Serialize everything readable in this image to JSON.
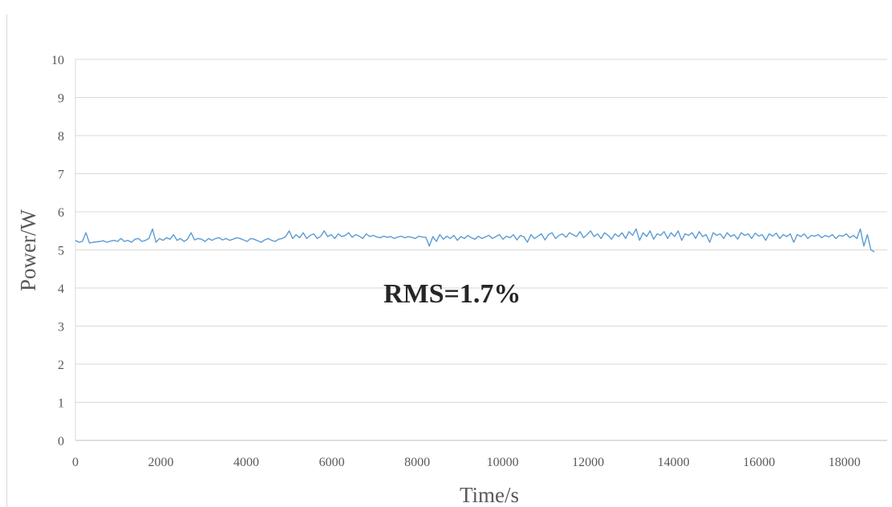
{
  "chart_data": {
    "type": "line",
    "title": "",
    "xlabel": "Time/s",
    "ylabel": "Power/W",
    "xlim": [
      0,
      19000
    ],
    "ylim": [
      0,
      10
    ],
    "x_ticks": [
      "0",
      "2000",
      "4000",
      "6000",
      "8000",
      "10000",
      "12000",
      "14000",
      "16000",
      "18000"
    ],
    "y_ticks": [
      "0",
      "1",
      "2",
      "3",
      "4",
      "5",
      "6",
      "7",
      "8",
      "9",
      "10"
    ],
    "grid": true,
    "legend": "none",
    "annotation": "RMS=1.7%",
    "series": [
      {
        "color": "#5b9bd5",
        "x_start": 0,
        "x_end": 18700,
        "values": [
          5.25,
          5.2,
          5.22,
          5.45,
          5.18,
          5.2,
          5.21,
          5.22,
          5.24,
          5.2,
          5.23,
          5.25,
          5.22,
          5.3,
          5.22,
          5.25,
          5.2,
          5.28,
          5.3,
          5.22,
          5.25,
          5.3,
          5.55,
          5.2,
          5.3,
          5.25,
          5.32,
          5.28,
          5.4,
          5.25,
          5.3,
          5.22,
          5.28,
          5.45,
          5.26,
          5.3,
          5.28,
          5.22,
          5.3,
          5.25,
          5.3,
          5.32,
          5.26,
          5.3,
          5.25,
          5.28,
          5.32,
          5.3,
          5.26,
          5.22,
          5.3,
          5.28,
          5.24,
          5.2,
          5.26,
          5.3,
          5.25,
          5.22,
          5.28,
          5.3,
          5.35,
          5.5,
          5.3,
          5.4,
          5.32,
          5.45,
          5.3,
          5.38,
          5.42,
          5.3,
          5.36,
          5.5,
          5.35,
          5.4,
          5.3,
          5.42,
          5.35,
          5.38,
          5.45,
          5.33,
          5.4,
          5.36,
          5.3,
          5.42,
          5.35,
          5.38,
          5.34,
          5.32,
          5.36,
          5.33,
          5.35,
          5.3,
          5.34,
          5.36,
          5.32,
          5.35,
          5.33,
          5.3,
          5.36,
          5.34,
          5.33,
          5.1,
          5.35,
          5.22,
          5.4,
          5.28,
          5.36,
          5.3,
          5.38,
          5.25,
          5.35,
          5.3,
          5.38,
          5.32,
          5.28,
          5.36,
          5.3,
          5.34,
          5.38,
          5.3,
          5.35,
          5.4,
          5.28,
          5.36,
          5.32,
          5.4,
          5.26,
          5.38,
          5.34,
          5.2,
          5.4,
          5.3,
          5.36,
          5.42,
          5.26,
          5.4,
          5.45,
          5.3,
          5.38,
          5.42,
          5.33,
          5.45,
          5.4,
          5.35,
          5.48,
          5.32,
          5.4,
          5.5,
          5.35,
          5.42,
          5.3,
          5.45,
          5.38,
          5.28,
          5.42,
          5.35,
          5.45,
          5.3,
          5.48,
          5.38,
          5.55,
          5.25,
          5.45,
          5.35,
          5.5,
          5.28,
          5.42,
          5.38,
          5.48,
          5.3,
          5.45,
          5.35,
          5.5,
          5.25,
          5.42,
          5.38,
          5.45,
          5.3,
          5.48,
          5.35,
          5.4,
          5.2,
          5.45,
          5.38,
          5.42,
          5.3,
          5.45,
          5.35,
          5.4,
          5.28,
          5.45,
          5.38,
          5.42,
          5.3,
          5.44,
          5.36,
          5.4,
          5.25,
          5.42,
          5.36,
          5.44,
          5.3,
          5.4,
          5.35,
          5.42,
          5.2,
          5.4,
          5.35,
          5.42,
          5.3,
          5.38,
          5.36,
          5.4,
          5.32,
          5.38,
          5.34,
          5.4,
          5.3,
          5.38,
          5.36,
          5.42,
          5.32,
          5.38,
          5.3,
          5.55,
          5.1,
          5.4,
          5.0,
          4.95
        ]
      }
    ]
  }
}
